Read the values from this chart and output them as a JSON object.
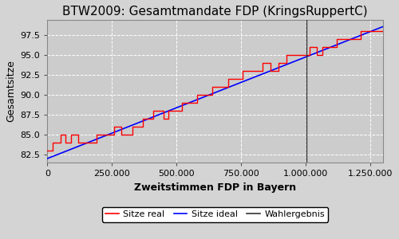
{
  "title": "BTW2009: Gesamtmandate FDP (KringsRuppertC)",
  "xlabel": "Zweitstimmen FDP in Bayern",
  "ylabel": "Gesamtsitze",
  "xlim": [
    0,
    1300000
  ],
  "ylim": [
    81.5,
    99.5
  ],
  "yticks": [
    82.5,
    85.0,
    87.5,
    90.0,
    92.5,
    95.0,
    97.5
  ],
  "xticks": [
    0,
    250000,
    500000,
    750000,
    1000000,
    1250000
  ],
  "xtick_labels": [
    "0",
    "250.000",
    "500.000",
    "750.000",
    "1.000.000",
    "1.250.000"
  ],
  "wahlergebnis_x": 1005000,
  "ideal_x_start": 0,
  "ideal_x_end": 1300000,
  "ideal_y_start": 82.0,
  "ideal_y_end": 98.6,
  "bg_color": "#cccccc",
  "fig_bg_color": "#d4d4d4",
  "legend_labels": [
    "Sitze real",
    "Sitze ideal",
    "Wahlergebnis"
  ],
  "title_fontsize": 11,
  "axis_label_fontsize": 9,
  "tick_fontsize": 8,
  "legend_fontsize": 8,
  "steps_real": [
    [
      0,
      83
    ],
    [
      20000,
      84
    ],
    [
      50000,
      85
    ],
    [
      70000,
      84
    ],
    [
      90000,
      85
    ],
    [
      120000,
      84
    ],
    [
      150000,
      84
    ],
    [
      190000,
      85
    ],
    [
      230000,
      85
    ],
    [
      260000,
      86
    ],
    [
      285000,
      85
    ],
    [
      300000,
      85
    ],
    [
      330000,
      86
    ],
    [
      370000,
      87
    ],
    [
      410000,
      88
    ],
    [
      450000,
      87
    ],
    [
      470000,
      88
    ],
    [
      495000,
      88
    ],
    [
      520000,
      89
    ],
    [
      550000,
      89
    ],
    [
      580000,
      90
    ],
    [
      610000,
      90
    ],
    [
      640000,
      91
    ],
    [
      670000,
      91
    ],
    [
      700000,
      92
    ],
    [
      730000,
      92
    ],
    [
      755000,
      93
    ],
    [
      785000,
      93
    ],
    [
      810000,
      93
    ],
    [
      835000,
      94
    ],
    [
      865000,
      93
    ],
    [
      895000,
      94
    ],
    [
      925000,
      95
    ],
    [
      955000,
      95
    ],
    [
      985000,
      95
    ],
    [
      1015000,
      96
    ],
    [
      1045000,
      95
    ],
    [
      1065000,
      96
    ],
    [
      1095000,
      96
    ],
    [
      1120000,
      97
    ],
    [
      1150000,
      97
    ],
    [
      1180000,
      97
    ],
    [
      1215000,
      98
    ],
    [
      1245000,
      98
    ],
    [
      1275000,
      98
    ],
    [
      1300000,
      98
    ]
  ]
}
